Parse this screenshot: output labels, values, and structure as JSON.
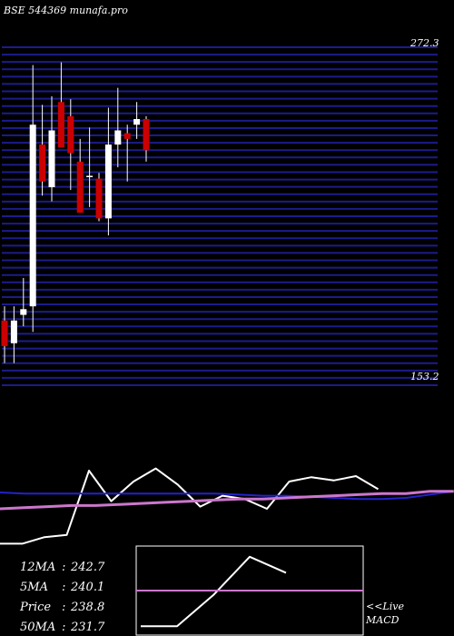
{
  "header": {
    "title": "BSE 544369 munafa.pro"
  },
  "colors": {
    "background": "#000000",
    "gridline": "#1c1c8c",
    "bull_candle": "#ffffff",
    "bear_candle": "#cc0000",
    "wick": "#ffffff",
    "price_line": "#ffffff",
    "blue_ma": "#2222cc",
    "purple_ma": "#cc77cc",
    "macd_signal": "#cc77cc"
  },
  "price_axis": {
    "top_label": "272.3",
    "bottom_label": "153.2",
    "ylim": [
      153.2,
      272.3
    ]
  },
  "chart_data": [
    {
      "type": "candlestick",
      "title": "",
      "ylim": [
        153.2,
        272.3
      ],
      "candles": [
        {
          "open": 176,
          "high": 181,
          "low": 161,
          "close": 167
        },
        {
          "open": 168,
          "high": 181,
          "low": 161,
          "close": 176
        },
        {
          "open": 178,
          "high": 191,
          "low": 174,
          "close": 180
        },
        {
          "open": 181,
          "high": 266,
          "low": 172,
          "close": 245
        },
        {
          "open": 238,
          "high": 252,
          "low": 220,
          "close": 225
        },
        {
          "open": 223,
          "high": 255,
          "low": 218,
          "close": 243
        },
        {
          "open": 253,
          "high": 267,
          "low": 238,
          "close": 237
        },
        {
          "open": 248,
          "high": 254,
          "low": 222,
          "close": 235
        },
        {
          "open": 232,
          "high": 240,
          "low": 214,
          "close": 214
        },
        {
          "open": 227,
          "high": 244,
          "low": 216,
          "close": 227
        },
        {
          "open": 226,
          "high": 228,
          "low": 211,
          "close": 212
        },
        {
          "open": 212,
          "high": 251,
          "low": 206,
          "close": 238
        },
        {
          "open": 238,
          "high": 258,
          "low": 230,
          "close": 243
        },
        {
          "open": 242,
          "high": 245,
          "low": 225,
          "close": 240
        },
        {
          "open": 245,
          "high": 253,
          "low": 240,
          "close": 247
        },
        {
          "open": 247,
          "high": 248,
          "low": 232,
          "close": 236
        }
      ]
    },
    {
      "type": "line",
      "title": "",
      "series": [
        {
          "values": [
            18,
            18,
            24,
            26,
            85,
            57,
            75,
            87,
            72,
            52,
            62,
            59,
            50,
            75,
            79,
            76,
            80,
            68
          ]
        },
        {
          "values": [
            65,
            64,
            64,
            64,
            64,
            64,
            64,
            64,
            64,
            64,
            63,
            62,
            62,
            61,
            60,
            59,
            59,
            60,
            63,
            66
          ]
        },
        {
          "values": [
            50,
            51,
            52,
            53,
            53,
            54,
            55,
            56,
            57,
            58,
            59,
            59,
            60,
            61,
            62,
            63,
            64,
            64,
            66,
            66
          ]
        }
      ]
    },
    {
      "type": "line",
      "title": "",
      "ylim": [
        0,
        1
      ],
      "series": [
        {
          "values": [
            0.1,
            0.1,
            0.45,
            0.88,
            0.7
          ]
        },
        {
          "values": [
            0.5,
            0.5,
            0.5,
            0.5,
            0.5,
            0.5,
            0.5,
            0.5,
            0.5
          ]
        }
      ]
    }
  ],
  "stats": [
    {
      "label": "12MA",
      "value": "242.7"
    },
    {
      "label": "5MA",
      "value": "240.1"
    },
    {
      "label": "Price",
      "value": "238.8"
    },
    {
      "label": "50MA",
      "value": "231.7"
    }
  ],
  "macd": {
    "live_label": "<<Live",
    "name_label": "MACD"
  }
}
